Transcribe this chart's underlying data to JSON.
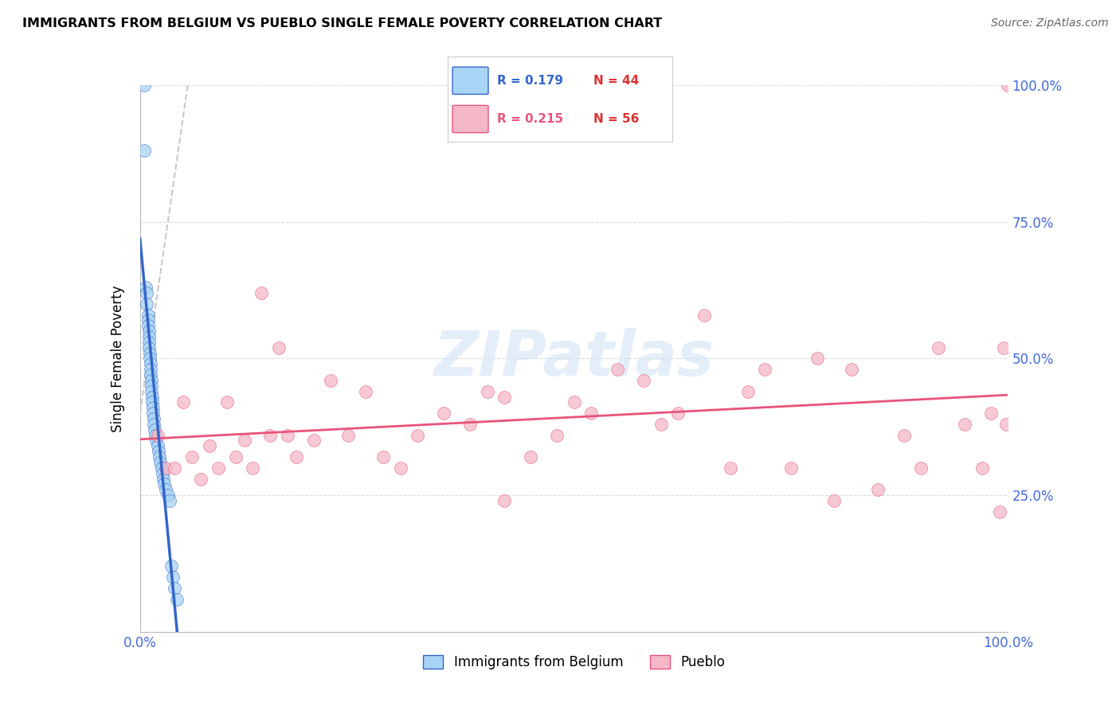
{
  "title": "IMMIGRANTS FROM BELGIUM VS PUEBLO SINGLE FEMALE POVERTY CORRELATION CHART",
  "source": "Source: ZipAtlas.com",
  "ylabel": "Single Female Poverty",
  "r_belgium": 0.179,
  "n_belgium": 44,
  "r_pueblo": 0.215,
  "n_pueblo": 56,
  "xlim": [
    0,
    1
  ],
  "ylim": [
    0,
    1
  ],
  "color_belgium": "#a8d4f5",
  "color_pueblo": "#f5b8c8",
  "trendline_color_belgium": "#3366cc",
  "trendline_color_pueblo": "#e8547a",
  "watermark_color": "#c8dff5",
  "belgium_x": [
    0.005,
    0.005,
    0.007,
    0.008,
    0.008,
    0.009,
    0.009,
    0.009,
    0.01,
    0.01,
    0.01,
    0.01,
    0.011,
    0.011,
    0.012,
    0.012,
    0.012,
    0.013,
    0.013,
    0.013,
    0.014,
    0.014,
    0.015,
    0.015,
    0.016,
    0.016,
    0.017,
    0.018,
    0.019,
    0.02,
    0.021,
    0.022,
    0.023,
    0.025,
    0.026,
    0.027,
    0.028,
    0.03,
    0.032,
    0.034,
    0.036,
    0.038,
    0.04,
    0.042
  ],
  "belgium_y": [
    1.0,
    0.88,
    0.63,
    0.62,
    0.6,
    0.58,
    0.57,
    0.56,
    0.55,
    0.54,
    0.53,
    0.52,
    0.51,
    0.5,
    0.49,
    0.48,
    0.47,
    0.46,
    0.45,
    0.44,
    0.43,
    0.42,
    0.41,
    0.4,
    0.39,
    0.38,
    0.37,
    0.36,
    0.35,
    0.34,
    0.33,
    0.32,
    0.31,
    0.3,
    0.29,
    0.28,
    0.27,
    0.26,
    0.25,
    0.24,
    0.12,
    0.1,
    0.08,
    0.06
  ],
  "pueblo_x": [
    0.02,
    0.03,
    0.04,
    0.05,
    0.06,
    0.07,
    0.08,
    0.09,
    0.1,
    0.11,
    0.12,
    0.13,
    0.15,
    0.16,
    0.17,
    0.18,
    0.2,
    0.22,
    0.24,
    0.26,
    0.28,
    0.3,
    0.32,
    0.35,
    0.38,
    0.4,
    0.42,
    0.45,
    0.48,
    0.5,
    0.52,
    0.55,
    0.58,
    0.6,
    0.62,
    0.65,
    0.68,
    0.7,
    0.72,
    0.75,
    0.78,
    0.8,
    0.82,
    0.85,
    0.88,
    0.9,
    0.92,
    0.95,
    0.97,
    0.98,
    0.99,
    0.995,
    0.998,
    1.0,
    0.14,
    0.42
  ],
  "pueblo_y": [
    0.36,
    0.3,
    0.3,
    0.42,
    0.32,
    0.28,
    0.34,
    0.3,
    0.42,
    0.32,
    0.35,
    0.3,
    0.36,
    0.52,
    0.36,
    0.32,
    0.35,
    0.46,
    0.36,
    0.44,
    0.32,
    0.3,
    0.36,
    0.4,
    0.38,
    0.44,
    0.43,
    0.32,
    0.36,
    0.42,
    0.4,
    0.48,
    0.46,
    0.38,
    0.4,
    0.58,
    0.3,
    0.44,
    0.48,
    0.3,
    0.5,
    0.24,
    0.48,
    0.26,
    0.36,
    0.3,
    0.52,
    0.38,
    0.3,
    0.4,
    0.22,
    0.52,
    0.38,
    1.0,
    0.62,
    0.24
  ]
}
